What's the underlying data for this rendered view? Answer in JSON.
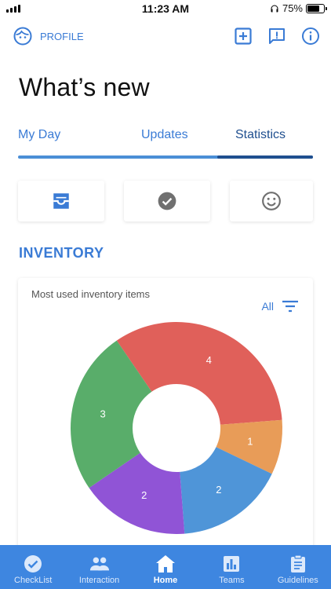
{
  "status_bar": {
    "time": "11:23 AM",
    "battery": "75%",
    "battery_level": 0.75
  },
  "header": {
    "profile_label": "PROFILE",
    "icons": [
      "add-box-icon",
      "feedback-icon",
      "info-icon"
    ]
  },
  "page_title": "What’s new",
  "tabs": [
    {
      "label": "My Day",
      "active": false
    },
    {
      "label": "Updates",
      "active": false
    },
    {
      "label": "Statistics",
      "active": true
    }
  ],
  "filter_cards": [
    {
      "icon": "inbox-icon",
      "selected": true
    },
    {
      "icon": "check-circle-icon",
      "selected": false
    },
    {
      "icon": "smiley-icon",
      "selected": false
    }
  ],
  "section_title": "INVENTORY",
  "chart_card": {
    "title": "Most used inventory items",
    "filter_label": "All"
  },
  "chart_data": {
    "type": "pie",
    "donut": true,
    "slices": [
      {
        "value": 4,
        "color": "#e0605a"
      },
      {
        "value": 1,
        "color": "#e89c58"
      },
      {
        "value": 2,
        "color": "#4f95d8"
      },
      {
        "value": 2,
        "color": "#9054d6"
      },
      {
        "value": 3,
        "color": "#59ad6a"
      }
    ]
  },
  "bottom_nav": [
    {
      "label": "CheckList",
      "icon": "check-circle-icon",
      "active": false
    },
    {
      "label": "Interaction",
      "icon": "group-icon",
      "active": false
    },
    {
      "label": "Home",
      "icon": "home-icon",
      "active": true
    },
    {
      "label": "Teams",
      "icon": "bar-chart-icon",
      "active": false
    },
    {
      "label": "Guidelines",
      "icon": "clipboard-icon",
      "active": false
    }
  ],
  "colors": {
    "accent": "#3a7bd5",
    "accent_dark": "#1f4f8f",
    "nav_bg": "#3e86e0"
  }
}
